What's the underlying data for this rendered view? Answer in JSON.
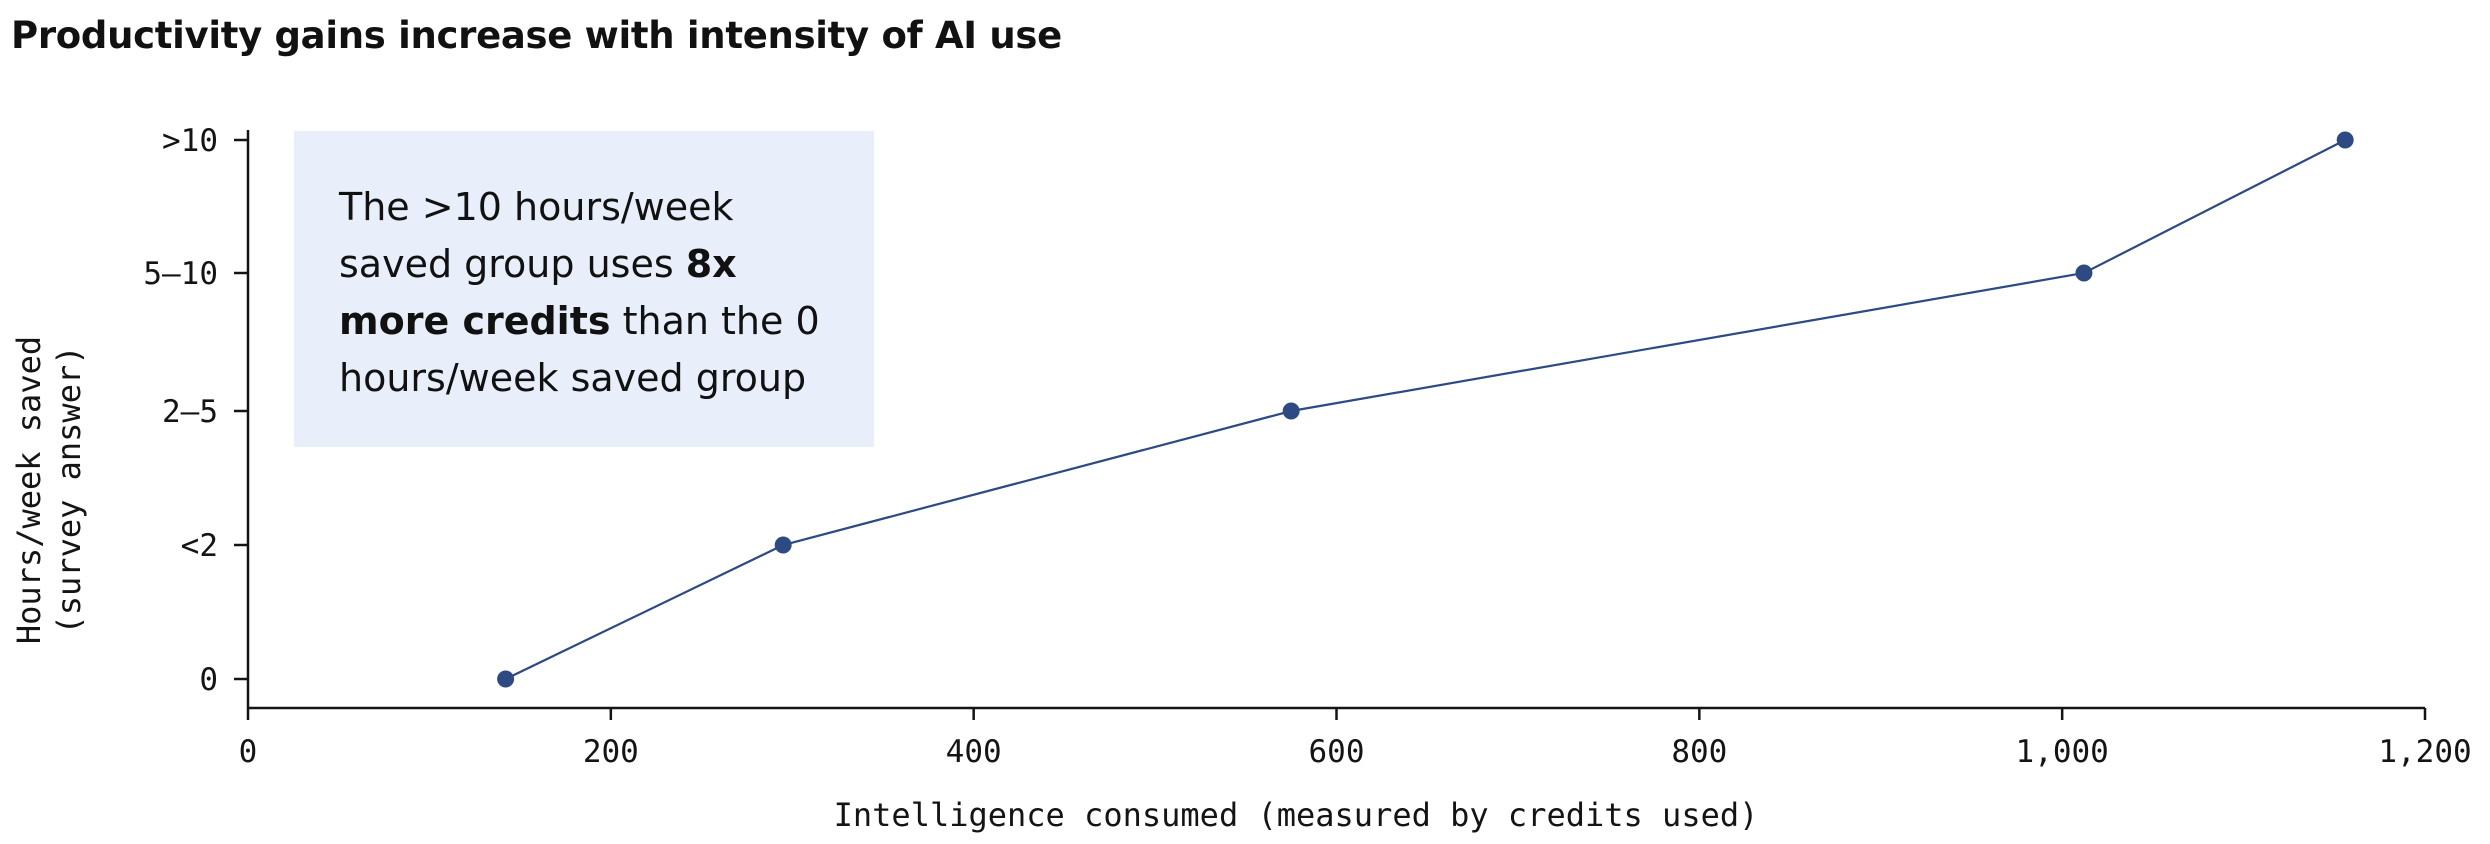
{
  "title": "Productivity gains increase with intensity of AI use",
  "colors": {
    "series": "#2e4a82",
    "annotation_bg": "#e8effb",
    "axis": "#141414"
  },
  "annotation": {
    "text_before": "The >10 hours/week saved group uses ",
    "text_bold": "8x more credits",
    "text_after": " than the 0 hours/week saved group"
  },
  "chart_data": {
    "type": "line",
    "xlabel": "Intelligence consumed (measured by credits used)",
    "ylabel": [
      "Hours/week saved",
      "(survey answer)"
    ],
    "xlim": [
      0,
      1200
    ],
    "xticks": [
      {
        "value": 0,
        "label": "0"
      },
      {
        "value": 200,
        "label": "200"
      },
      {
        "value": 400,
        "label": "400"
      },
      {
        "value": 600,
        "label": "600"
      },
      {
        "value": 800,
        "label": "800"
      },
      {
        "value": 1000,
        "label": "1,000"
      },
      {
        "value": 1200,
        "label": "1,200"
      }
    ],
    "categories": [
      "0",
      "<2",
      "2–5",
      "5–10",
      ">10"
    ],
    "series": [
      {
        "x": [
          142,
          295,
          575,
          1012,
          1156
        ],
        "y": [
          "0",
          "<2",
          "2–5",
          "5–10",
          ">10"
        ]
      }
    ],
    "grid": false,
    "legend": "none"
  }
}
